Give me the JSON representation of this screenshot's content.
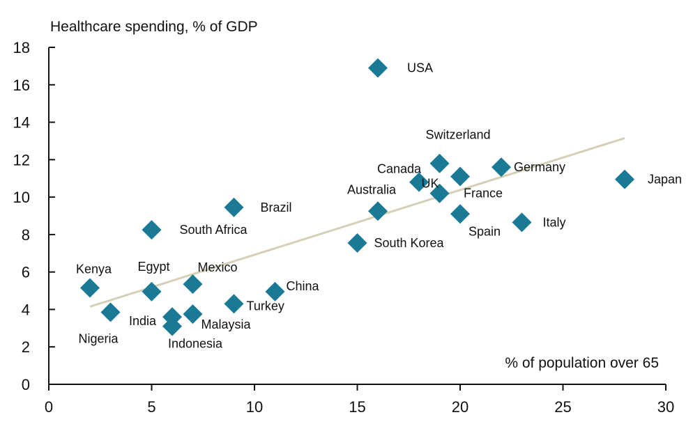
{
  "chart_data": {
    "type": "scatter",
    "title": "",
    "ylabel": "Healthcare spending, % of GDP",
    "xlabel": "% of population over 65",
    "xlim": [
      0,
      30
    ],
    "ylim": [
      0,
      18
    ],
    "xticks": [
      0,
      5,
      10,
      15,
      20,
      25,
      30
    ],
    "yticks": [
      0,
      2,
      4,
      6,
      8,
      10,
      12,
      14,
      16,
      18
    ],
    "marker": "diamond",
    "marker_color": "#1a7a96",
    "trendline_color": "#d4d0b6",
    "trendline": {
      "x": [
        2,
        28
      ],
      "y": [
        4.15,
        13.15
      ]
    },
    "points": [
      {
        "label": "USA",
        "x": 16,
        "y": 16.9
      },
      {
        "label": "Switzerland",
        "x": 19,
        "y": 11.8
      },
      {
        "label": "Canada",
        "x": 18,
        "y": 10.8
      },
      {
        "label": "Germany",
        "x": 22,
        "y": 11.6
      },
      {
        "label": "France",
        "x": 20,
        "y": 11.1
      },
      {
        "label": "Japan",
        "x": 28,
        "y": 10.95
      },
      {
        "label": "Australia",
        "x": 16,
        "y": 9.25
      },
      {
        "label": "UK",
        "x": 19,
        "y": 10.2
      },
      {
        "label": "Spain",
        "x": 20,
        "y": 9.1
      },
      {
        "label": "Italy",
        "x": 23,
        "y": 8.65
      },
      {
        "label": "Brazil",
        "x": 9,
        "y": 9.45
      },
      {
        "label": "South Africa",
        "x": 5,
        "y": 8.25
      },
      {
        "label": "South Korea",
        "x": 15,
        "y": 7.55
      },
      {
        "label": "Kenya",
        "x": 2,
        "y": 5.15
      },
      {
        "label": "Egypt",
        "x": 5,
        "y": 4.95
      },
      {
        "label": "Mexico",
        "x": 7,
        "y": 5.35
      },
      {
        "label": "China",
        "x": 11,
        "y": 4.95
      },
      {
        "label": "Turkey",
        "x": 9,
        "y": 4.3
      },
      {
        "label": "Nigeria",
        "x": 3,
        "y": 3.85
      },
      {
        "label": "India",
        "x": 6,
        "y": 3.6
      },
      {
        "label": "Malaysia",
        "x": 7,
        "y": 3.75
      },
      {
        "label": "Indonesia",
        "x": 6,
        "y": 3.1
      }
    ]
  }
}
